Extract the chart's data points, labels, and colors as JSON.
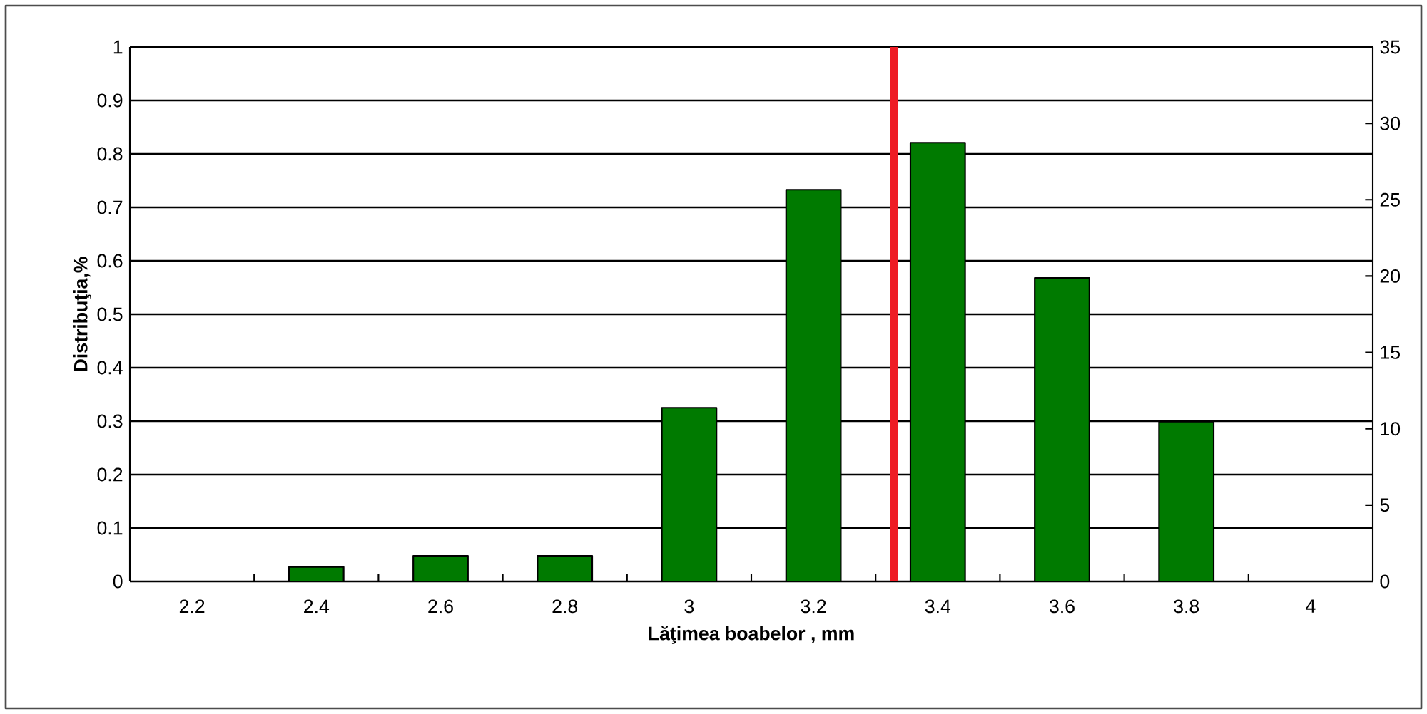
{
  "chart_data": {
    "type": "bar",
    "xlabel": "Lăţimea boabelor ,   mm",
    "ylabel": "Distribuţia,%",
    "x": [
      2.2,
      2.4,
      2.6,
      2.8,
      3,
      3.2,
      3.4,
      3.6,
      3.8,
      4
    ],
    "values": [
      0,
      0.027,
      0.048,
      0.048,
      0.325,
      0.733,
      0.821,
      0.568,
      0.299,
      0
    ],
    "color": "#007a00",
    "xlim": [
      2.1,
      4.1
    ],
    "xticks": [
      2.2,
      2.4,
      2.6,
      2.8,
      3,
      3.2,
      3.4,
      3.6,
      3.8,
      4
    ],
    "ylim": [
      0,
      1
    ],
    "yticks": [
      0,
      0.1,
      0.2,
      0.3,
      0.4,
      0.5,
      0.6,
      0.7,
      0.8,
      0.9,
      1
    ],
    "y2lim": [
      0,
      35
    ],
    "y2ticks": [
      0,
      5,
      10,
      15,
      20,
      25,
      30,
      35
    ],
    "grid": "y",
    "ref_lines": [
      {
        "axis": "x",
        "value": 3.33,
        "color": "#ee1c25"
      }
    ]
  }
}
